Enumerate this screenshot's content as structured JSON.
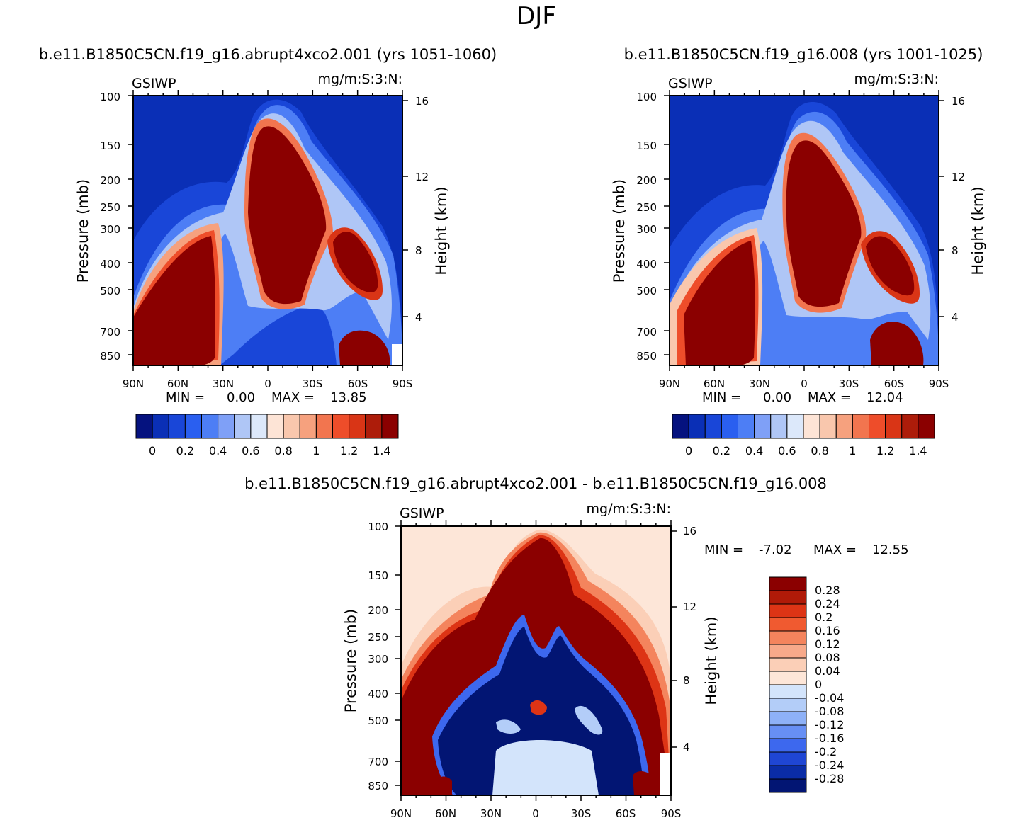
{
  "figure": {
    "title": "DJF"
  },
  "chart_data": [
    {
      "type": "heatmap",
      "panel": "left",
      "title": "b.e11.B1850C5CN.f19_g16.abrupt4xco2.001  (yrs  1051-1060)",
      "variable": "GSIWP",
      "units": "mg/m:S:3:N:",
      "x_ticks": [
        "90N",
        "60N",
        "30N",
        "0",
        "30S",
        "60S",
        "90S"
      ],
      "y_ticks": [
        "100",
        "150",
        "200",
        "250",
        "300",
        "400",
        "500",
        "700",
        "850"
      ],
      "y_ticks_right": [
        "16",
        "12",
        "8",
        "4"
      ],
      "ylabel": "Pressure  (mb)",
      "ylabel_right": "Height  (km)",
      "min_label": "MIN  =",
      "min_value": "0.00",
      "max_label": "MAX  =",
      "max_value": "13.85",
      "colorbar_labels": [
        "0",
        "0.2",
        "0.4",
        "0.6",
        "0.8",
        "1",
        "1.2",
        "1.4"
      ]
    },
    {
      "type": "heatmap",
      "panel": "right",
      "title": "b.e11.B1850C5CN.f19_g16.008  (yrs  1001-1025)",
      "variable": "GSIWP",
      "units": "mg/m:S:3:N:",
      "x_ticks": [
        "90N",
        "60N",
        "30N",
        "0",
        "30S",
        "60S",
        "90S"
      ],
      "y_ticks": [
        "100",
        "150",
        "200",
        "250",
        "300",
        "400",
        "500",
        "700",
        "850"
      ],
      "y_ticks_right": [
        "16",
        "12",
        "8",
        "4"
      ],
      "ylabel": "Pressure  (mb)",
      "ylabel_right": "Height  (km)",
      "min_label": "MIN  =",
      "min_value": "0.00",
      "max_label": "MAX  =",
      "max_value": "12.04",
      "colorbar_labels": [
        "0",
        "0.2",
        "0.4",
        "0.6",
        "0.8",
        "1",
        "1.2",
        "1.4"
      ]
    },
    {
      "type": "heatmap",
      "panel": "difference",
      "title": "b.e11.B1850C5CN.f19_g16.abrupt4xco2.001  -  b.e11.B1850C5CN.f19_g16.008",
      "variable": "GSIWP",
      "units": "mg/m:S:3:N:",
      "x_ticks": [
        "90N",
        "60N",
        "30N",
        "0",
        "30S",
        "60S",
        "90S"
      ],
      "y_ticks": [
        "100",
        "150",
        "200",
        "250",
        "300",
        "400",
        "500",
        "700",
        "850"
      ],
      "y_ticks_right": [
        "16",
        "12",
        "8",
        "4"
      ],
      "ylabel": "Pressure  (mb)",
      "ylabel_right": "Height  (km)",
      "min_label": "MIN  =",
      "min_value": "-7.02",
      "max_label": "MAX  =",
      "max_value": "12.55",
      "colorbar_labels": [
        "0.28",
        "0.24",
        "0.2",
        "0.16",
        "0.12",
        "0.08",
        "0.04",
        "0",
        "-0.04",
        "-0.08",
        "-0.12",
        "-0.16",
        "-0.2",
        "-0.24",
        "-0.28"
      ]
    }
  ],
  "colors": {
    "seq": [
      "#05127f",
      "#0a2fb6",
      "#1946d8",
      "#2a5ff0",
      "#4d7ef5",
      "#7fa0f7",
      "#afc6f6",
      "#dce8fa",
      "#fde4d6",
      "#f9c7ad",
      "#f6a17e",
      "#f2754f",
      "#ee4d2a",
      "#d93516",
      "#ad1c0a",
      "#8b0000"
    ],
    "diff": [
      "#8b0000",
      "#b01a08",
      "#dd3415",
      "#f05a30",
      "#f4845d",
      "#f7a98a",
      "#fbcfb7",
      "#fde6d8",
      "#d3e4fb",
      "#b3cdf8",
      "#8eb1f7",
      "#678ff4",
      "#3d68ee",
      "#1f46d4",
      "#0a2ca6",
      "#021573"
    ]
  }
}
